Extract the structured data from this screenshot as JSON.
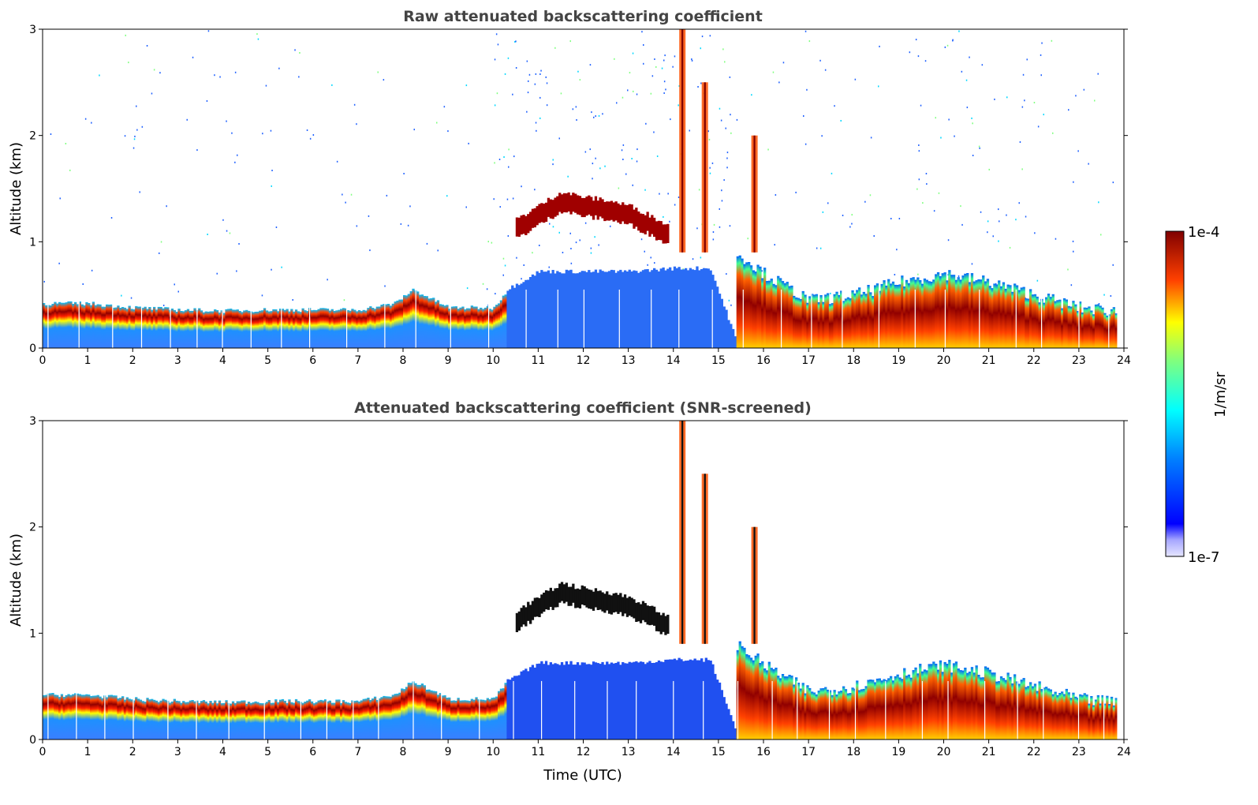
{
  "chart_data": [
    {
      "type": "heatmap",
      "title": "Raw attenuated backscattering coefficient",
      "xlabel": "",
      "ylabel": "Altitude (km)",
      "xlim": [
        0,
        24
      ],
      "ylim": [
        0,
        3
      ],
      "x_ticks": [
        "0",
        "1",
        "2",
        "3",
        "4",
        "5",
        "6",
        "7",
        "8",
        "9",
        "10",
        "11",
        "12",
        "13",
        "14",
        "15",
        "16",
        "17",
        "18",
        "19",
        "20",
        "21",
        "22",
        "23",
        "24"
      ],
      "y_ticks": [
        "0",
        "1",
        "2",
        "3"
      ],
      "screened": false,
      "features": [
        {
          "name": "boundary-layer",
          "x": [
            0,
            1,
            2,
            3,
            4,
            5,
            6,
            7,
            7.8,
            8.2,
            9,
            10,
            10.3,
            11,
            12,
            13,
            14,
            14.8,
            15.4
          ],
          "top": [
            0.42,
            0.42,
            0.38,
            0.36,
            0.35,
            0.36,
            0.36,
            0.36,
            0.42,
            0.55,
            0.38,
            0.38,
            0.55,
            0.72,
            0.72,
            0.72,
            0.75,
            0.75,
            0.05
          ],
          "band": [
            0.3,
            0.32,
            0.28,
            0.27,
            0.26,
            0.27,
            0.27,
            0.27,
            0.32,
            0.4,
            0.3,
            0.3,
            0.0,
            0.0,
            0.0,
            0.0,
            0.0,
            0.0,
            0.0
          ]
        },
        {
          "name": "elevated-cloud-layer",
          "x": [
            10.5,
            11,
            11.5,
            12,
            12.5,
            13,
            13.5,
            13.9
          ],
          "alt": [
            1.12,
            1.25,
            1.38,
            1.33,
            1.3,
            1.25,
            1.15,
            1.05
          ]
        },
        {
          "name": "afternoon-mixed-layer",
          "x": [
            15.4,
            16,
            17,
            18,
            19,
            20,
            21,
            22,
            23,
            23.8
          ],
          "top": [
            0.9,
            0.7,
            0.45,
            0.5,
            0.62,
            0.7,
            0.62,
            0.5,
            0.38,
            0.35
          ]
        }
      ],
      "colorscale": {
        "min": "1e-7",
        "max": "1e-4",
        "unit": "1/m/sr"
      }
    },
    {
      "type": "heatmap",
      "title": "Attenuated backscattering coefficient (SNR-screened)",
      "xlabel": "Time (UTC)",
      "ylabel": "Altitude (km)",
      "xlim": [
        0,
        24
      ],
      "ylim": [
        0,
        3
      ],
      "x_ticks": [
        "0",
        "1",
        "2",
        "3",
        "4",
        "5",
        "6",
        "7",
        "8",
        "9",
        "10",
        "11",
        "12",
        "13",
        "14",
        "15",
        "16",
        "17",
        "18",
        "19",
        "20",
        "21",
        "22",
        "23",
        "24"
      ],
      "y_ticks": [
        "0",
        "1",
        "2",
        "3"
      ],
      "screened": true,
      "colorscale": {
        "min": "1e-7",
        "max": "1e-4",
        "unit": "1/m/sr"
      }
    }
  ],
  "colorbar": {
    "top_label": "1e-4",
    "bottom_label": "1e-7",
    "unit_label": "1/m/sr"
  }
}
